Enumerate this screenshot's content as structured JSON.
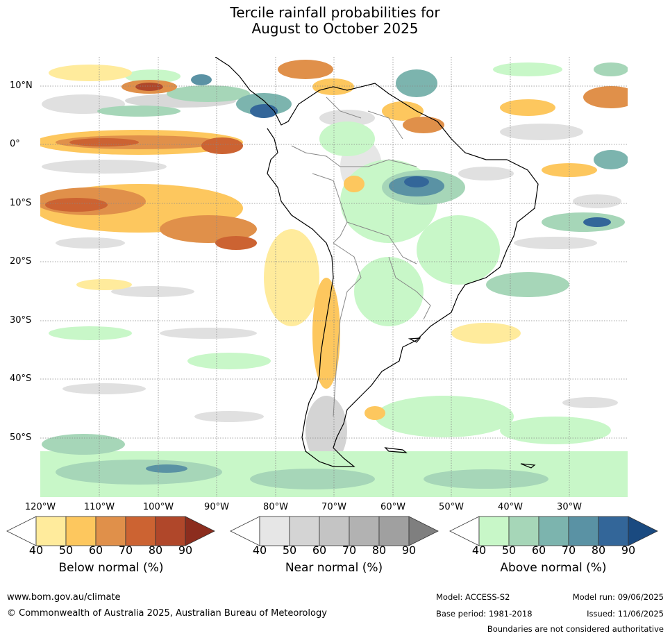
{
  "title_line1": "Tercile rainfall probabilities for",
  "title_line2": "August to October 2025",
  "lat_labels": [
    "10°N",
    "0°",
    "10°S",
    "20°S",
    "30°S",
    "40°S",
    "50°S"
  ],
  "lon_labels": [
    "120°W",
    "110°W",
    "100°W",
    "90°W",
    "80°W",
    "70°W",
    "60°W",
    "50°W",
    "40°W",
    "30°W"
  ],
  "legend": {
    "below": {
      "title": "Below normal (%)",
      "ticks": [
        "40",
        "50",
        "60",
        "70",
        "80",
        "90"
      ],
      "colors": [
        "#ffffff",
        "#ffeb9c",
        "#fdc75e",
        "#e0904a",
        "#cc6332",
        "#b0472a",
        "#8c2d1e"
      ]
    },
    "near": {
      "title": "Near normal (%)",
      "ticks": [
        "40",
        "50",
        "60",
        "70",
        "80",
        "90"
      ],
      "colors": [
        "#ffffff",
        "#e6e6e6",
        "#d4d4d4",
        "#c4c4c4",
        "#b2b2b2",
        "#a0a0a0",
        "#7f7f7f"
      ]
    },
    "above": {
      "title": "Above normal (%)",
      "ticks": [
        "40",
        "50",
        "60",
        "70",
        "80",
        "90"
      ],
      "colors": [
        "#ffffff",
        "#c8f7c8",
        "#a6d6b8",
        "#7cb4ae",
        "#5a92a4",
        "#336699",
        "#1a4a80"
      ]
    }
  },
  "footer": {
    "url": "www.bom.gov.au/climate",
    "copyright": "© Commonwealth of Australia 2025, Australian Bureau of Meteorology",
    "model": "Model: ACCESS-S2",
    "base_period": "Base period: 1981-2018",
    "model_run": "Model run: 09/06/2025",
    "issued": "Issued: 11/06/2025",
    "disclaimer": "Boundaries are not considered authoritative"
  }
}
